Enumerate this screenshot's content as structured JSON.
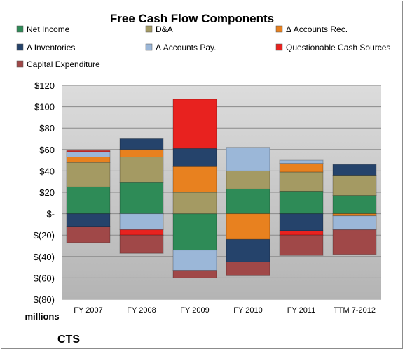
{
  "chart_data": {
    "type": "bar",
    "stacked": true,
    "title": "Free Cash Flow Components",
    "categories": [
      "FY 2007",
      "FY 2008",
      "FY 2009",
      "FY 2010",
      "FY 2011",
      "TTM 7-2012"
    ],
    "ylim": [
      -80,
      120
    ],
    "yticks": [
      -80,
      -60,
      -40,
      -20,
      0,
      20,
      40,
      60,
      80,
      100,
      120
    ],
    "ytick_labels": [
      "$(80)",
      "$(60)",
      "$(40)",
      "$(20)",
      "$-",
      "$20",
      "$40",
      "$60",
      "$80",
      "$100",
      "$120"
    ],
    "ylabel": "millions",
    "grid": true,
    "legend_position": "top",
    "series": [
      {
        "name": "Net Income",
        "color": "#2e8b57",
        "values": [
          25,
          29,
          -34,
          23,
          21,
          17
        ]
      },
      {
        "name": "D&A",
        "color": "#a49a63",
        "values": [
          23,
          24,
          20,
          17,
          18,
          19
        ]
      },
      {
        "name": "Δ Accounts Rec.",
        "color": "#e8811f",
        "values": [
          5,
          7,
          24,
          -24,
          8,
          -2
        ]
      },
      {
        "name": "Δ Inventories",
        "color": "#25436b",
        "values": [
          -12,
          10,
          17,
          -21,
          -16,
          10
        ]
      },
      {
        "name": "Δ Accounts Pay.",
        "color": "#9bb7d8",
        "values": [
          5,
          -15,
          -19,
          22,
          3,
          -13
        ]
      },
      {
        "name": "Questionable Cash Sources",
        "color": "#e8221f",
        "values": [
          1,
          -5,
          46,
          0,
          -4,
          0
        ]
      },
      {
        "name": "Capital Expenditure",
        "color": "#a04848",
        "values": [
          -15,
          -17,
          -7,
          -13,
          -19,
          -23
        ]
      }
    ]
  },
  "footer": {
    "company": "CTS"
  }
}
